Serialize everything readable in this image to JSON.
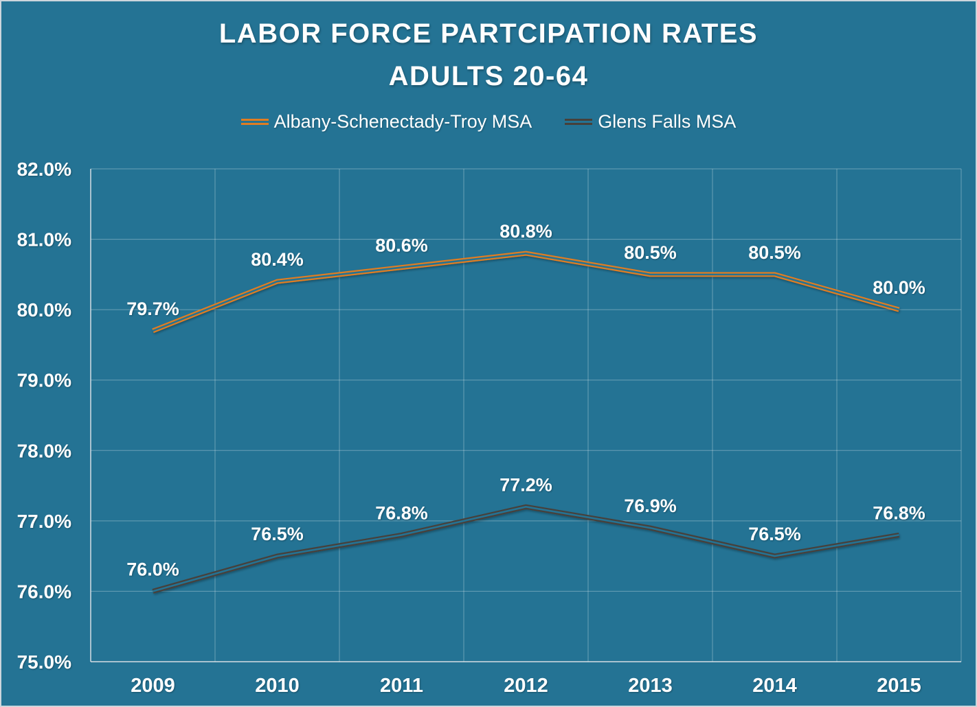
{
  "title": {
    "line1": "LABOR FORCE PARTCIPATION RATES",
    "line2": "ADULTS 20-64"
  },
  "legend": [
    {
      "label": "Albany-Schenectady-Troy MSA",
      "color": "#E07D22",
      "marker": "double-line-icon"
    },
    {
      "label": "Glens Falls MSA",
      "color": "#47403A",
      "marker": "double-line-icon"
    }
  ],
  "colors": {
    "background": "#247394",
    "frame_border": "#ccd6dc",
    "text": "#ffffff",
    "grid": "rgba(255,255,255,0.32)",
    "axis": "#d6dee3"
  },
  "chart_data": {
    "type": "line",
    "title": "LABOR FORCE PARTCIPATION RATES ADULTS 20-64",
    "x": [
      "2009",
      "2010",
      "2011",
      "2012",
      "2013",
      "2014",
      "2015"
    ],
    "series": [
      {
        "name": "Albany-Schenectady-Troy MSA",
        "color": "#E07D22",
        "style": "double-line",
        "values": [
          79.7,
          80.4,
          80.6,
          80.8,
          80.5,
          80.5,
          80.0
        ],
        "labels": [
          "79.7%",
          "80.4%",
          "80.6%",
          "80.8%",
          "80.5%",
          "80.5%",
          "80.0%"
        ]
      },
      {
        "name": "Glens Falls MSA",
        "color": "#47403A",
        "style": "double-line",
        "values": [
          76.0,
          76.5,
          76.8,
          77.2,
          76.9,
          76.5,
          76.8
        ],
        "labels": [
          "76.0%",
          "76.5%",
          "76.8%",
          "77.2%",
          "76.9%",
          "76.5%",
          "76.8%"
        ]
      }
    ],
    "xlabel": "",
    "ylabel": "",
    "ylim": [
      75.0,
      82.0
    ],
    "ytick_step": 1.0,
    "ytick_labels": [
      "75.0%",
      "76.0%",
      "77.0%",
      "78.0%",
      "79.0%",
      "80.0%",
      "81.0%",
      "82.0%"
    ],
    "grid": true,
    "legend_position": "top"
  }
}
